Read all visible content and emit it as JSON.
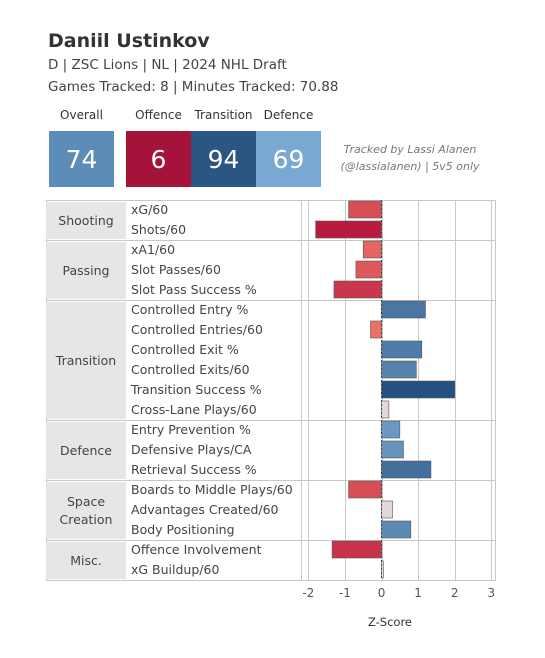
{
  "player": {
    "name": "Daniil Ustinkov",
    "info": "D | ZSC Lions | NL | 2024 NHL Draft",
    "tracking": "Games Tracked: 8 | Minutes Tracked: 70.88"
  },
  "scores": [
    {
      "label": "Overall",
      "value": "74",
      "color": "#5b8db8"
    },
    {
      "label": "Offence",
      "value": "6",
      "color": "#a5123a"
    },
    {
      "label": "Transition",
      "value": "94",
      "color": "#2b5583"
    },
    {
      "label": "Defence",
      "value": "69",
      "color": "#79a9d2"
    }
  ],
  "tracked_note": {
    "line1": "Tracked by Lassi Alanen",
    "line2": "(@lassialanen) | 5v5 only"
  },
  "chart_data": {
    "type": "bar",
    "orientation": "horizontal",
    "xlabel": "Z-Score",
    "xlim": [
      -2.2,
      3.1
    ],
    "xticks": [
      "-2",
      "-1",
      "0",
      "1",
      "2",
      "3"
    ],
    "grid": true,
    "groups": [
      {
        "name": "Shooting",
        "metrics": [
          "xG/60",
          "Shots/60"
        ]
      },
      {
        "name": "Passing",
        "metrics": [
          "xA1/60",
          "Slot Passes/60",
          "Slot Pass Success %"
        ]
      },
      {
        "name": "Transition",
        "metrics": [
          "Controlled Entry %",
          "Controlled Entries/60",
          "Controlled Exit %",
          "Controlled Exits/60",
          "Transition Success %",
          "Cross-Lane Plays/60"
        ]
      },
      {
        "name": "Defence",
        "metrics": [
          "Entry Prevention %",
          "Defensive Plays/CA",
          "Retrieval Success %"
        ]
      },
      {
        "name": "Space Creation",
        "metrics": [
          "Boards to Middle Plays/60",
          "Advantages Created/60",
          "Body Positioning"
        ]
      },
      {
        "name": "Misc.",
        "metrics": [
          "Offence Involvement",
          "xG Buildup/60"
        ]
      }
    ],
    "values": [
      -0.9,
      -1.8,
      -0.5,
      -0.7,
      -1.3,
      1.2,
      -0.3,
      1.1,
      0.95,
      2.0,
      0.2,
      0.5,
      0.6,
      1.35,
      -0.9,
      0.3,
      0.8,
      -1.35,
      0.05
    ]
  }
}
